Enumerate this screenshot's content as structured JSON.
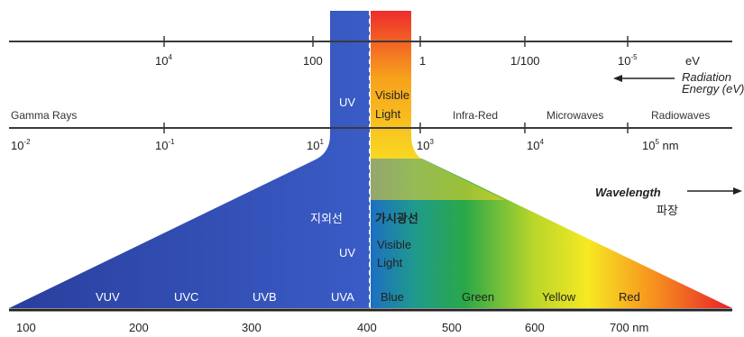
{
  "energy_axis": {
    "ticks": [
      {
        "base": "10",
        "exp": "4"
      },
      {
        "text": "100"
      },
      {
        "text": "1"
      },
      {
        "text": "1/100"
      },
      {
        "base": "10",
        "exp": "-5"
      }
    ],
    "unit": "eV",
    "caption_line1": "Radiation",
    "caption_line2": "Energy (eV)"
  },
  "bands": {
    "gamma": "Gamma Rays",
    "uv": "UV",
    "visible_line1": "Visible",
    "visible_line2": "Light",
    "infrared": "Infra-Red",
    "microwaves": "Microwaves",
    "radiowaves": "Radiowaves"
  },
  "wavelength_scale": {
    "ticks": [
      {
        "base": "10",
        "exp": "-2"
      },
      {
        "base": "10",
        "exp": "-1"
      },
      {
        "base": "10",
        "exp": "1"
      },
      {
        "base": "10",
        "exp": "3"
      },
      {
        "base": "10",
        "exp": "4"
      },
      {
        "base": "10",
        "exp": "5",
        "suffix": " nm"
      }
    ]
  },
  "wavelength_title": "Wavelength",
  "wavelength_korean": "파장",
  "zoom": {
    "uv_korean": "지외선",
    "visible_korean": "가시광선",
    "uv": "UV",
    "visible_line1": "Visible",
    "visible_line2": "Light"
  },
  "sub_bands": [
    "VUV",
    "UVC",
    "UVB",
    "UVA",
    "Blue",
    "Green",
    "Yellow",
    "Red"
  ],
  "bottom_axis": {
    "ticks": [
      "100",
      "200",
      "300",
      "400",
      "500",
      "600",
      "700 nm"
    ]
  },
  "colors": {
    "uv": "#2b44a6",
    "uv_light": "#3f5fc8",
    "red": "#e8262a",
    "orange": "#f79a1e",
    "yellow": "#f7ee22",
    "green": "#21a84a",
    "blue": "#1e7fc6"
  }
}
